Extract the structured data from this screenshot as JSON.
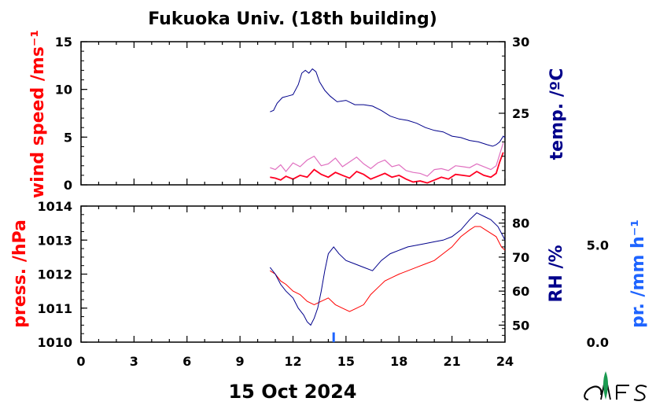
{
  "chart_data": [
    {
      "type": "line",
      "title": "Fukuoka Univ. (18th building)",
      "xlabel": "15 Oct 2024",
      "xlim": [
        0,
        24
      ],
      "x_ticks": [
        "0",
        "3",
        "6",
        "9",
        "12",
        "15",
        "18",
        "21",
        "24"
      ],
      "left_axis": {
        "label": "wind speed /ms⁻¹",
        "color": "#ff0000",
        "ylim": [
          0,
          15
        ],
        "ticks": [
          "0",
          "5",
          "10",
          "15"
        ]
      },
      "right_axis": {
        "label": "temp. /ºC",
        "color": "#00008b",
        "ylim": [
          20,
          30
        ],
        "ticks": [
          "25",
          "30"
        ]
      },
      "series": [
        {
          "name": "wind speed /ms⁻¹",
          "axis": "left",
          "color": "#ff0022",
          "x": [
            10.7,
            11.0,
            11.3,
            11.6,
            12.0,
            12.4,
            12.8,
            13.2,
            13.6,
            14.0,
            14.4,
            14.8,
            15.2,
            15.6,
            16.0,
            16.4,
            16.8,
            17.2,
            17.6,
            18.0,
            18.4,
            18.8,
            19.2,
            19.6,
            20.0,
            20.4,
            20.8,
            21.2,
            21.6,
            22.0,
            22.4,
            22.8,
            23.2,
            23.5,
            23.7,
            23.9
          ],
          "y": [
            0.8,
            0.7,
            0.5,
            0.9,
            0.6,
            1.0,
            0.8,
            1.6,
            1.1,
            0.8,
            1.3,
            1.0,
            0.7,
            1.4,
            1.1,
            0.6,
            0.9,
            1.2,
            0.8,
            1.0,
            0.6,
            0.3,
            0.4,
            0.2,
            0.5,
            0.8,
            0.6,
            1.1,
            1.0,
            0.9,
            1.4,
            1.0,
            0.8,
            1.2,
            2.4,
            3.4
          ]
        },
        {
          "name": "wind speed /ms⁻¹ (gust)",
          "axis": "left",
          "color": "#e070c0",
          "x": [
            10.7,
            11.0,
            11.3,
            11.6,
            12.0,
            12.4,
            12.8,
            13.2,
            13.6,
            14.0,
            14.4,
            14.8,
            15.2,
            15.6,
            16.0,
            16.4,
            16.8,
            17.2,
            17.6,
            18.0,
            18.4,
            18.8,
            19.2,
            19.6,
            20.0,
            20.4,
            20.8,
            21.2,
            21.6,
            22.0,
            22.4,
            22.8,
            23.2,
            23.5,
            23.7,
            23.9
          ],
          "y": [
            1.8,
            1.6,
            2.1,
            1.4,
            2.3,
            1.9,
            2.6,
            3.0,
            2.0,
            2.2,
            2.8,
            1.9,
            2.4,
            2.9,
            2.2,
            1.7,
            2.3,
            2.6,
            1.9,
            2.1,
            1.5,
            1.3,
            1.2,
            0.9,
            1.6,
            1.7,
            1.5,
            2.0,
            1.9,
            1.8,
            2.2,
            1.9,
            1.6,
            2.0,
            3.2,
            4.4
          ]
        },
        {
          "name": "temp. /ºC",
          "axis": "right",
          "color": "#00008b",
          "x": [
            10.7,
            10.9,
            11.1,
            11.4,
            11.7,
            12.0,
            12.3,
            12.5,
            12.7,
            12.9,
            13.1,
            13.3,
            13.5,
            13.8,
            14.1,
            14.5,
            15.0,
            15.5,
            16.0,
            16.5,
            17.0,
            17.5,
            18.0,
            18.5,
            19.0,
            19.5,
            20.0,
            20.5,
            21.0,
            21.5,
            22.0,
            22.5,
            23.0,
            23.3,
            23.5,
            23.7,
            23.9,
            24.0
          ],
          "y": [
            25.1,
            25.2,
            25.7,
            26.1,
            26.2,
            26.3,
            27.0,
            27.8,
            28.0,
            27.8,
            28.1,
            27.9,
            27.2,
            26.6,
            26.2,
            25.8,
            25.9,
            25.6,
            25.6,
            25.5,
            25.2,
            24.8,
            24.6,
            24.5,
            24.3,
            24.0,
            23.8,
            23.7,
            23.4,
            23.3,
            23.1,
            23.0,
            22.8,
            22.7,
            22.8,
            23.0,
            23.4,
            23.3
          ]
        }
      ]
    },
    {
      "type": "line",
      "xlabel": "15 Oct 2024",
      "xlim": [
        0,
        24
      ],
      "x_ticks": [
        "0",
        "3",
        "6",
        "9",
        "12",
        "15",
        "18",
        "21",
        "24"
      ],
      "left_axis": {
        "label": "press. /hPa",
        "color": "#ff0000",
        "ylim": [
          1010,
          1014
        ],
        "ticks": [
          "1010",
          "1011",
          "1012",
          "1013",
          "1014"
        ]
      },
      "right_axis": {
        "label": "RH /%",
        "color": "#00008b",
        "ylim": [
          45,
          85
        ],
        "ticks": [
          "50",
          "60",
          "70",
          "80"
        ]
      },
      "precip_axis": {
        "label": "pr. /mm h⁻¹",
        "color": "#1e64ff",
        "ylim": [
          0,
          7
        ],
        "ticks": [
          "0.0",
          "5.0"
        ]
      },
      "series": [
        {
          "name": "press. /hPa",
          "axis": "left",
          "color": "#ff0000",
          "x": [
            10.7,
            11.0,
            11.3,
            11.6,
            12.0,
            12.4,
            12.8,
            13.2,
            13.6,
            14.0,
            14.4,
            14.8,
            15.2,
            15.6,
            16.0,
            16.4,
            16.8,
            17.2,
            17.6,
            18.0,
            18.5,
            19.0,
            19.5,
            20.0,
            20.5,
            21.0,
            21.5,
            22.0,
            22.3,
            22.6,
            22.9,
            23.2,
            23.5,
            23.8,
            24.0
          ],
          "y": [
            1012.1,
            1012.0,
            1011.8,
            1011.7,
            1011.5,
            1011.4,
            1011.2,
            1011.1,
            1011.2,
            1011.3,
            1011.1,
            1011.0,
            1010.9,
            1011.0,
            1011.1,
            1011.4,
            1011.6,
            1011.8,
            1011.9,
            1012.0,
            1012.1,
            1012.2,
            1012.3,
            1012.4,
            1012.6,
            1012.8,
            1013.1,
            1013.3,
            1013.4,
            1013.4,
            1013.3,
            1013.2,
            1013.1,
            1012.8,
            1012.7
          ]
        },
        {
          "name": "RH /%",
          "axis": "right",
          "color": "#00008b",
          "x": [
            10.7,
            11.0,
            11.3,
            11.6,
            12.0,
            12.3,
            12.6,
            12.8,
            13.0,
            13.2,
            13.4,
            13.6,
            13.8,
            14.0,
            14.3,
            14.6,
            15.0,
            15.5,
            16.0,
            16.5,
            17.0,
            17.5,
            18.0,
            18.5,
            19.0,
            19.5,
            20.0,
            20.5,
            21.0,
            21.5,
            22.0,
            22.4,
            22.8,
            23.2,
            23.6,
            23.9,
            24.0
          ],
          "y": [
            67,
            65,
            62,
            60,
            58,
            55,
            53,
            51,
            50,
            52,
            55,
            60,
            66,
            71,
            73,
            71,
            69,
            68,
            67,
            66,
            69,
            71,
            72,
            73,
            73.5,
            74,
            74.5,
            75,
            76,
            78,
            81,
            83,
            82,
            81,
            79,
            76,
            75
          ]
        },
        {
          "name": "pr. /mm h⁻¹",
          "axis": "precip",
          "type": "bar",
          "color": "#1e64ff",
          "x": [
            14.3
          ],
          "y": [
            0.5
          ]
        }
      ]
    }
  ]
}
